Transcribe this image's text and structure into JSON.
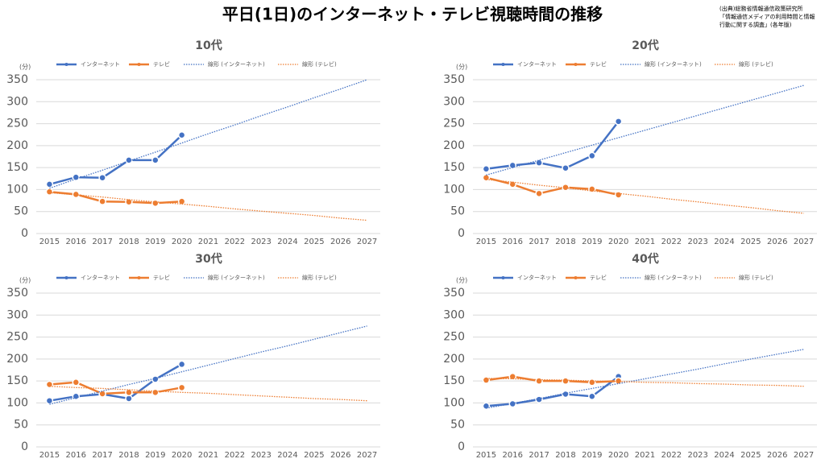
{
  "title": "平日(1日)のインターネット・テレビ視聴時間の推移",
  "source": [
    "(出典)総務省情報通信政策研究所",
    "「情報通信メディアの利用時間と情報",
    "行動に関する調査」(各年版)"
  ],
  "chart_data": [
    {
      "type": "line",
      "title": "10代",
      "y_label": "(分)",
      "categories": [
        "2015",
        "2016",
        "2017",
        "2018",
        "2019",
        "2020",
        "2021",
        "2022",
        "2023",
        "2024",
        "2025",
        "2026",
        "2027"
      ],
      "ylim": [
        0,
        350
      ],
      "yticks": [
        0,
        50,
        100,
        150,
        200,
        250,
        300,
        350
      ],
      "series": [
        {
          "name": "インターネット",
          "color": "#4472c4",
          "dash": "solid",
          "values": [
            112,
            128,
            127,
            167,
            167,
            224,
            null,
            null,
            null,
            null,
            null,
            null,
            null
          ]
        },
        {
          "name": "テレビ",
          "color": "#ed7d31",
          "dash": "solid",
          "values": [
            95,
            89,
            73,
            72,
            69,
            73,
            null,
            null,
            null,
            null,
            null,
            null,
            null
          ]
        },
        {
          "name": "線形 (インターネット)",
          "color": "#4472c4",
          "dash": "dotted",
          "values": [
            103,
            124,
            144,
            165,
            185,
            206,
            227,
            247,
            268,
            288,
            309,
            329,
            350
          ]
        },
        {
          "name": "線形 (テレビ)",
          "color": "#ed7d31",
          "dash": "dotted",
          "values": [
            93,
            88,
            83,
            77,
            72,
            67,
            62,
            56,
            51,
            46,
            41,
            35,
            30
          ]
        }
      ]
    },
    {
      "type": "line",
      "title": "20代",
      "y_label": "(分)",
      "categories": [
        "2015",
        "2016",
        "2017",
        "2018",
        "2019",
        "2020",
        "2021",
        "2022",
        "2023",
        "2024",
        "2025",
        "2026",
        "2027"
      ],
      "ylim": [
        0,
        350
      ],
      "yticks": [
        0,
        50,
        100,
        150,
        200,
        250,
        300,
        350
      ],
      "series": [
        {
          "name": "インターネット",
          "color": "#4472c4",
          "dash": "solid",
          "values": [
            147,
            155,
            161,
            149,
            177,
            255,
            null,
            null,
            null,
            null,
            null,
            null,
            null
          ]
        },
        {
          "name": "テレビ",
          "color": "#ed7d31",
          "dash": "solid",
          "values": [
            127,
            112,
            91,
            105,
            101,
            88,
            null,
            null,
            null,
            null,
            null,
            null,
            null
          ]
        },
        {
          "name": "線形 (インターネット)",
          "color": "#4472c4",
          "dash": "dotted",
          "values": [
            133,
            150,
            167,
            184,
            201,
            218,
            235,
            252,
            269,
            286,
            303,
            320,
            337
          ]
        },
        {
          "name": "線形 (テレビ)",
          "color": "#ed7d31",
          "dash": "dotted",
          "values": [
            123,
            117,
            110,
            104,
            97,
            91,
            85,
            78,
            72,
            65,
            59,
            52,
            46
          ]
        }
      ]
    },
    {
      "type": "line",
      "title": "30代",
      "y_label": "(分)",
      "categories": [
        "2015",
        "2016",
        "2017",
        "2018",
        "2019",
        "2020",
        "2021",
        "2022",
        "2023",
        "2024",
        "2025",
        "2026",
        "2027"
      ],
      "ylim": [
        0,
        350
      ],
      "yticks": [
        0,
        50,
        100,
        150,
        200,
        250,
        300,
        350
      ],
      "series": [
        {
          "name": "インターネット",
          "color": "#4472c4",
          "dash": "solid",
          "values": [
            105,
            115,
            120,
            110,
            154,
            188,
            null,
            null,
            null,
            null,
            null,
            null,
            null
          ]
        },
        {
          "name": "テレビ",
          "color": "#ed7d31",
          "dash": "solid",
          "values": [
            142,
            147,
            121,
            124,
            124,
            135,
            null,
            null,
            null,
            null,
            null,
            null,
            null
          ]
        },
        {
          "name": "線形 (インターネット)",
          "color": "#4472c4",
          "dash": "dotted",
          "values": [
            97,
            112,
            127,
            142,
            156,
            171,
            186,
            201,
            216,
            230,
            245,
            260,
            275
          ]
        },
        {
          "name": "線形 (テレビ)",
          "color": "#ed7d31",
          "dash": "dotted",
          "values": [
            138,
            135,
            133,
            130,
            127,
            124,
            122,
            119,
            116,
            113,
            110,
            108,
            105
          ]
        }
      ]
    },
    {
      "type": "line",
      "title": "40代",
      "y_label": "(分)",
      "categories": [
        "2015",
        "2016",
        "2017",
        "2018",
        "2019",
        "2020",
        "2021",
        "2022",
        "2023",
        "2024",
        "2025",
        "2026",
        "2027"
      ],
      "ylim": [
        0,
        350
      ],
      "yticks": [
        0,
        50,
        100,
        150,
        200,
        250,
        300,
        350
      ],
      "series": [
        {
          "name": "インターネット",
          "color": "#4472c4",
          "dash": "solid",
          "values": [
            93,
            98,
            108,
            120,
            115,
            160,
            null,
            null,
            null,
            null,
            null,
            null,
            null
          ]
        },
        {
          "name": "テレビ",
          "color": "#ed7d31",
          "dash": "solid",
          "values": [
            152,
            160,
            150,
            150,
            147,
            150,
            null,
            null,
            null,
            null,
            null,
            null,
            null
          ]
        },
        {
          "name": "線形 (インターネット)",
          "color": "#4472c4",
          "dash": "dotted",
          "values": [
            88,
            99,
            110,
            122,
            133,
            144,
            155,
            166,
            177,
            189,
            200,
            211,
            222
          ]
        },
        {
          "name": "線形 (テレビ)",
          "color": "#ed7d31",
          "dash": "dotted",
          "values": [
            156,
            155,
            153,
            152,
            150,
            149,
            147,
            146,
            144,
            143,
            141,
            140,
            138
          ]
        }
      ]
    }
  ]
}
